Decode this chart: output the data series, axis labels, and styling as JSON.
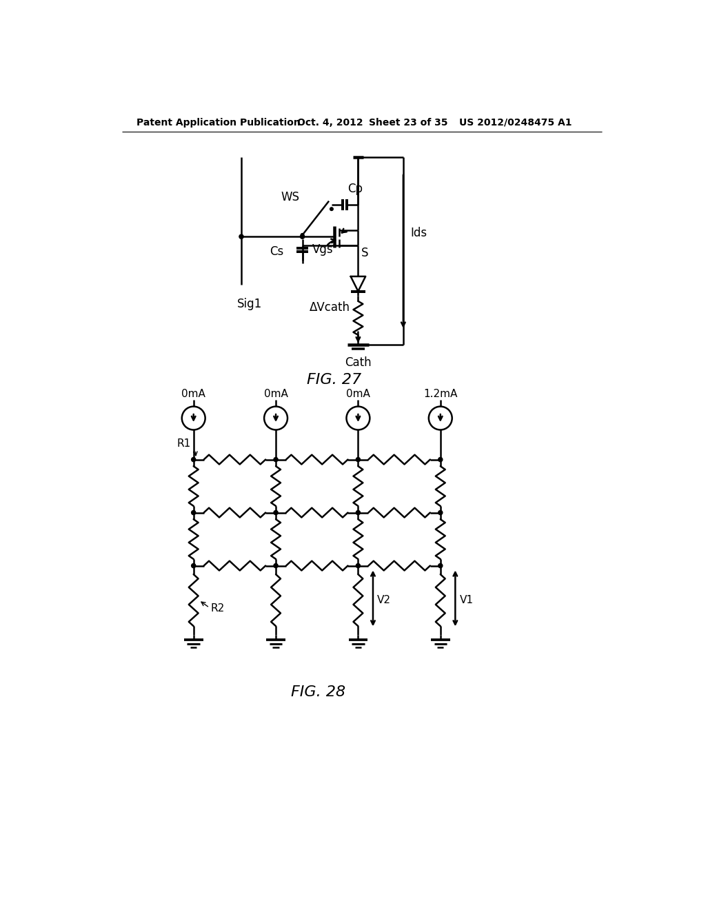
{
  "bg_color": "#ffffff",
  "header_text": "Patent Application Publication",
  "header_date": "Oct. 4, 2012",
  "header_sheet": "Sheet 23 of 35",
  "header_patent": "US 2012/0248475 A1",
  "fig27_label": "FIG. 27",
  "fig28_label": "FIG. 28",
  "line_color": "#000000",
  "line_width": 1.8,
  "font_size_header": 10,
  "font_size_label": 12,
  "font_size_fig": 16
}
